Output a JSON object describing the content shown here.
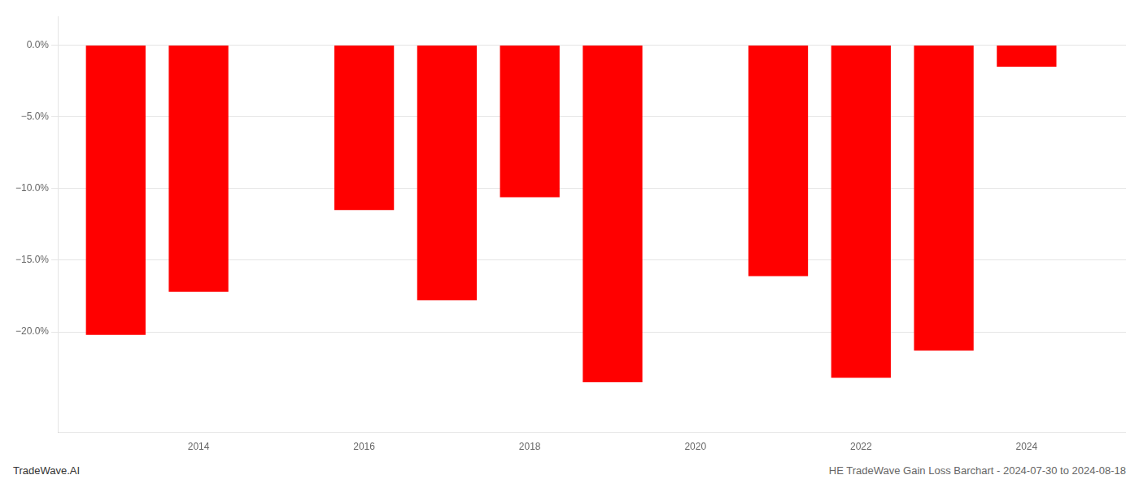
{
  "chart_data": {
    "type": "bar",
    "x": [
      2013,
      2014,
      2016,
      2017,
      2018,
      2019,
      2021,
      2022,
      2023,
      2024
    ],
    "values": [
      -20.2,
      -17.2,
      -11.5,
      -17.8,
      -10.6,
      -23.5,
      -16.1,
      -23.2,
      -21.3,
      -1.5
    ],
    "color": "#FF0000",
    "xlim": [
      2012.3,
      2025.2
    ],
    "xticks": [
      2014,
      2016,
      2018,
      2020,
      2022,
      2024
    ],
    "ylim": [
      -27,
      2.0
    ],
    "yticks": [
      {
        "value": 0.0,
        "label": "0.0%"
      },
      {
        "value": -5.0,
        "label": "−5.0%"
      },
      {
        "value": -10.0,
        "label": "−10.0%"
      },
      {
        "value": -15.0,
        "label": "−15.0%"
      },
      {
        "value": -20.0,
        "label": "−20.0%"
      }
    ],
    "grid": true,
    "annotations": [
      "TradeWave.AI",
      "HE TradeWave Gain Loss Barchart - 2024-07-30 to 2024-08-18"
    ]
  }
}
